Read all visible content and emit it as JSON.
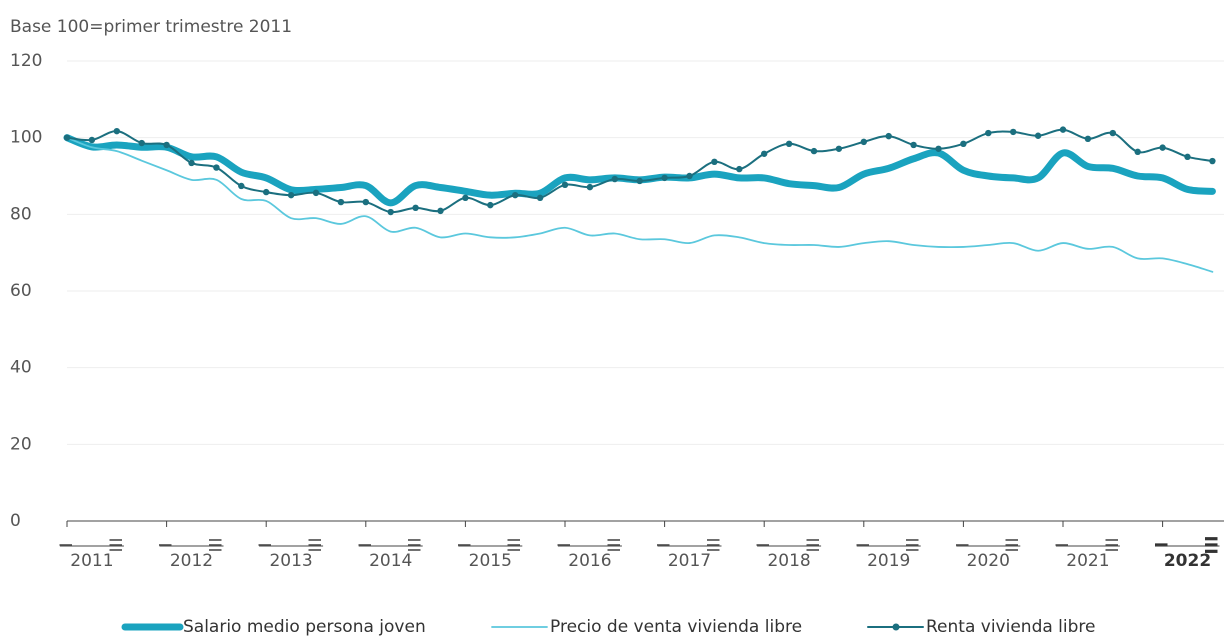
{
  "chart_data": {
    "type": "line",
    "subtitle": "Base 100=primer trimestre 2011",
    "categories": [
      "I",
      null,
      "III",
      null,
      "I",
      null,
      "III",
      null,
      "I",
      null,
      "III",
      null,
      "I",
      null,
      "III",
      null,
      "I",
      null,
      "III",
      null,
      "I",
      null,
      "III",
      null,
      "I",
      null,
      "III",
      null,
      "I",
      null,
      "III",
      null,
      "I",
      null,
      "III",
      null,
      "I",
      null,
      "III",
      null,
      "I",
      null,
      "III",
      null,
      "I",
      null,
      "III"
    ],
    "years": [
      "2011",
      "2012",
      "2013",
      "2014",
      "2015",
      "2016",
      "2017",
      "2018",
      "2019",
      "2020",
      "2021",
      "2022"
    ],
    "ylim": [
      0,
      120
    ],
    "yticks": [
      0,
      20,
      40,
      60,
      80,
      100,
      120
    ],
    "grid": true,
    "series": [
      {
        "name": "Salario medio persona joven",
        "color": "#1aa3bf",
        "width": 7,
        "markers": false,
        "values": [
          100,
          97.6,
          98.1,
          97.5,
          97.5,
          95,
          95,
          91,
          89.5,
          86.4,
          86.5,
          87,
          87.5,
          83,
          87.5,
          87,
          86,
          85,
          85.5,
          85.5,
          89.5,
          89,
          89.5,
          89,
          89.7,
          89.5,
          90.5,
          89.5,
          89.5,
          88,
          87.5,
          87,
          90.5,
          92,
          94.5,
          96,
          91.5,
          90,
          89.5,
          89.5,
          96,
          92.5,
          92,
          90,
          89.5,
          86.5,
          86
        ]
      },
      {
        "name": "Precio de venta vivienda libre",
        "color": "#5bc8dd",
        "width": 1.8,
        "markers": false,
        "values": [
          100,
          97.5,
          96.5,
          94,
          91.5,
          89,
          89,
          84,
          83.5,
          79,
          79,
          77.5,
          79.5,
          75.5,
          76.5,
          74,
          75,
          74,
          74,
          75,
          76.5,
          74.5,
          75,
          73.5,
          73.5,
          72.5,
          74.5,
          74,
          72.5,
          72,
          72,
          71.5,
          72.5,
          73,
          72,
          71.5,
          71.5,
          72,
          72.5,
          70.5,
          72.5,
          71,
          71.5,
          68.5,
          68.5,
          67,
          65
        ]
      },
      {
        "name": "Renta vivienda libre",
        "color": "#1b6f7f",
        "width": 2,
        "markers": true,
        "values": [
          100,
          99.4,
          101.7,
          98.6,
          98.1,
          93.4,
          92.2,
          87.4,
          85.8,
          85,
          85.6,
          83.2,
          83.2,
          80.6,
          81.7,
          80.9,
          84.3,
          82.4,
          85,
          84.3,
          87.7,
          87.1,
          89.2,
          88.7,
          89.5,
          90,
          93.7,
          91.8,
          95.8,
          98.4,
          96.5,
          97.1,
          98.9,
          100.4,
          98.1,
          97.1,
          98.4,
          101.2,
          101.5,
          100.5,
          102.1,
          99.7,
          101.2,
          96.3,
          97.4,
          95,
          93.9
        ]
      }
    ]
  }
}
